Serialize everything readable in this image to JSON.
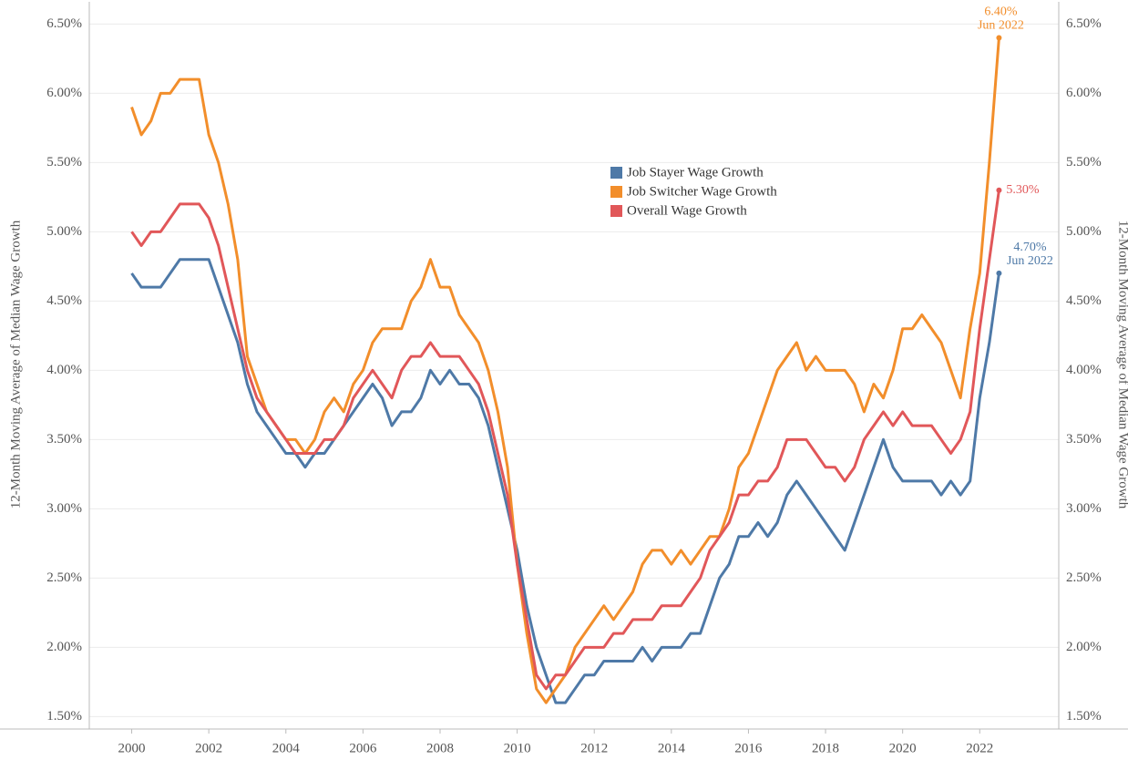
{
  "chart_data": {
    "type": "line",
    "ylabel": "12-Month Moving Average of Median Wage Growth",
    "y2label": "12-Month Moving Average of Median Wage Growth",
    "x": [
      2000,
      2000.25,
      2000.5,
      2000.75,
      2001,
      2001.25,
      2001.5,
      2001.75,
      2002,
      2002.25,
      2002.5,
      2002.75,
      2003,
      2003.25,
      2003.5,
      2003.75,
      2004,
      2004.25,
      2004.5,
      2004.75,
      2005,
      2005.25,
      2005.5,
      2005.75,
      2006,
      2006.25,
      2006.5,
      2006.75,
      2007,
      2007.25,
      2007.5,
      2007.75,
      2008,
      2008.25,
      2008.5,
      2008.75,
      2009,
      2009.25,
      2009.5,
      2009.75,
      2010,
      2010.25,
      2010.5,
      2010.75,
      2011,
      2011.25,
      2011.5,
      2011.75,
      2012,
      2012.25,
      2012.5,
      2012.75,
      2013,
      2013.25,
      2013.5,
      2013.75,
      2014,
      2014.25,
      2014.5,
      2014.75,
      2015,
      2015.25,
      2015.5,
      2015.75,
      2016,
      2016.25,
      2016.5,
      2016.75,
      2017,
      2017.25,
      2017.5,
      2017.75,
      2018,
      2018.25,
      2018.5,
      2018.75,
      2019,
      2019.25,
      2019.5,
      2019.75,
      2020,
      2020.25,
      2020.5,
      2020.75,
      2021,
      2021.25,
      2021.5,
      2021.75,
      2022,
      2022.25,
      2022.5
    ],
    "series": [
      {
        "name": "Job Stayer Wage Growth",
        "color": "#4e79a7",
        "end_label": "4.70%",
        "end_date": "Jun 2022",
        "values": [
          4.7,
          4.6,
          4.6,
          4.6,
          4.7,
          4.8,
          4.8,
          4.8,
          4.8,
          4.6,
          4.4,
          4.2,
          3.9,
          3.7,
          3.6,
          3.5,
          3.4,
          3.4,
          3.3,
          3.4,
          3.4,
          3.5,
          3.6,
          3.7,
          3.8,
          3.9,
          3.8,
          3.6,
          3.7,
          3.7,
          3.8,
          4.0,
          3.9,
          4.0,
          3.9,
          3.9,
          3.8,
          3.6,
          3.3,
          3.0,
          2.7,
          2.3,
          2.0,
          1.8,
          1.6,
          1.6,
          1.7,
          1.8,
          1.8,
          1.9,
          1.9,
          1.9,
          1.9,
          2.0,
          1.9,
          2.0,
          2.0,
          2.0,
          2.1,
          2.1,
          2.3,
          2.5,
          2.6,
          2.8,
          2.8,
          2.9,
          2.8,
          2.9,
          3.1,
          3.2,
          3.1,
          3.0,
          2.9,
          2.8,
          2.7,
          2.9,
          3.1,
          3.3,
          3.5,
          3.3,
          3.2,
          3.2,
          3.2,
          3.2,
          3.1,
          3.2,
          3.1,
          3.2,
          3.8,
          4.2,
          4.7
        ]
      },
      {
        "name": "Job Switcher Wage Growth",
        "color": "#f28e2b",
        "end_label": "6.40%",
        "end_date": "Jun 2022",
        "values": [
          5.9,
          5.7,
          5.8,
          6.0,
          6.0,
          6.1,
          6.1,
          6.1,
          5.7,
          5.5,
          5.2,
          4.8,
          4.1,
          3.9,
          3.7,
          3.6,
          3.5,
          3.5,
          3.4,
          3.5,
          3.7,
          3.8,
          3.7,
          3.9,
          4.0,
          4.2,
          4.3,
          4.3,
          4.3,
          4.5,
          4.6,
          4.8,
          4.6,
          4.6,
          4.4,
          4.3,
          4.2,
          4.0,
          3.7,
          3.3,
          2.6,
          2.1,
          1.7,
          1.6,
          1.7,
          1.8,
          2.0,
          2.1,
          2.2,
          2.3,
          2.2,
          2.3,
          2.4,
          2.6,
          2.7,
          2.7,
          2.6,
          2.7,
          2.6,
          2.7,
          2.8,
          2.8,
          3.0,
          3.3,
          3.4,
          3.6,
          3.8,
          4.0,
          4.1,
          4.2,
          4.0,
          4.1,
          4.0,
          4.0,
          4.0,
          3.9,
          3.7,
          3.9,
          3.8,
          4.0,
          4.3,
          4.3,
          4.4,
          4.3,
          4.2,
          4.0,
          3.8,
          4.3,
          4.7,
          5.5,
          6.4
        ]
      },
      {
        "name": "Overall Wage Growth",
        "color": "#e15759",
        "end_label": "5.30%",
        "values": [
          5.0,
          4.9,
          5.0,
          5.0,
          5.1,
          5.2,
          5.2,
          5.2,
          5.1,
          4.9,
          4.6,
          4.3,
          4.0,
          3.8,
          3.7,
          3.6,
          3.5,
          3.4,
          3.4,
          3.4,
          3.5,
          3.5,
          3.6,
          3.8,
          3.9,
          4.0,
          3.9,
          3.8,
          4.0,
          4.1,
          4.1,
          4.2,
          4.1,
          4.1,
          4.1,
          4.0,
          3.9,
          3.7,
          3.4,
          3.1,
          2.6,
          2.2,
          1.8,
          1.7,
          1.8,
          1.8,
          1.9,
          2.0,
          2.0,
          2.0,
          2.1,
          2.1,
          2.2,
          2.2,
          2.2,
          2.3,
          2.3,
          2.3,
          2.4,
          2.5,
          2.7,
          2.8,
          2.9,
          3.1,
          3.1,
          3.2,
          3.2,
          3.3,
          3.5,
          3.5,
          3.5,
          3.4,
          3.3,
          3.3,
          3.2,
          3.3,
          3.5,
          3.6,
          3.7,
          3.6,
          3.7,
          3.6,
          3.6,
          3.6,
          3.5,
          3.4,
          3.5,
          3.7,
          4.3,
          4.8,
          5.3
        ]
      }
    ],
    "xlim": [
      1998.9,
      2024.05
    ],
    "xticks": [
      2000,
      2002,
      2004,
      2006,
      2008,
      2010,
      2012,
      2014,
      2016,
      2018,
      2020,
      2022
    ],
    "ylim": [
      1.41,
      6.66
    ],
    "yticks": [
      {
        "value": 1.5,
        "label": "1.50%"
      },
      {
        "value": 2.0,
        "label": "2.00%"
      },
      {
        "value": 2.5,
        "label": "2.50%"
      },
      {
        "value": 3.0,
        "label": "3.00%"
      },
      {
        "value": 3.5,
        "label": "3.50%"
      },
      {
        "value": 4.0,
        "label": "4.00%"
      },
      {
        "value": 4.5,
        "label": "4.50%"
      },
      {
        "value": 5.0,
        "label": "5.00%"
      },
      {
        "value": 5.5,
        "label": "5.50%"
      },
      {
        "value": 6.0,
        "label": "6.00%"
      },
      {
        "value": 6.5,
        "label": "6.50%"
      }
    ],
    "y2lim": [
      1.41,
      6.66
    ],
    "y2ticks": [
      {
        "value": 1.5,
        "label": "1.50%"
      },
      {
        "value": 2.0,
        "label": "2.00%"
      },
      {
        "value": 2.5,
        "label": "2.50%"
      },
      {
        "value": 3.0,
        "label": "3.00%"
      },
      {
        "value": 3.5,
        "label": "3.50%"
      },
      {
        "value": 4.0,
        "label": "4.00%"
      },
      {
        "value": 4.5,
        "label": "4.50%"
      },
      {
        "value": 5.0,
        "label": "5.00%"
      },
      {
        "value": 5.5,
        "label": "5.50%"
      },
      {
        "value": 6.0,
        "label": "6.00%"
      },
      {
        "value": 6.5,
        "label": "6.50%"
      }
    ],
    "grid": true,
    "legend": "top-center"
  }
}
